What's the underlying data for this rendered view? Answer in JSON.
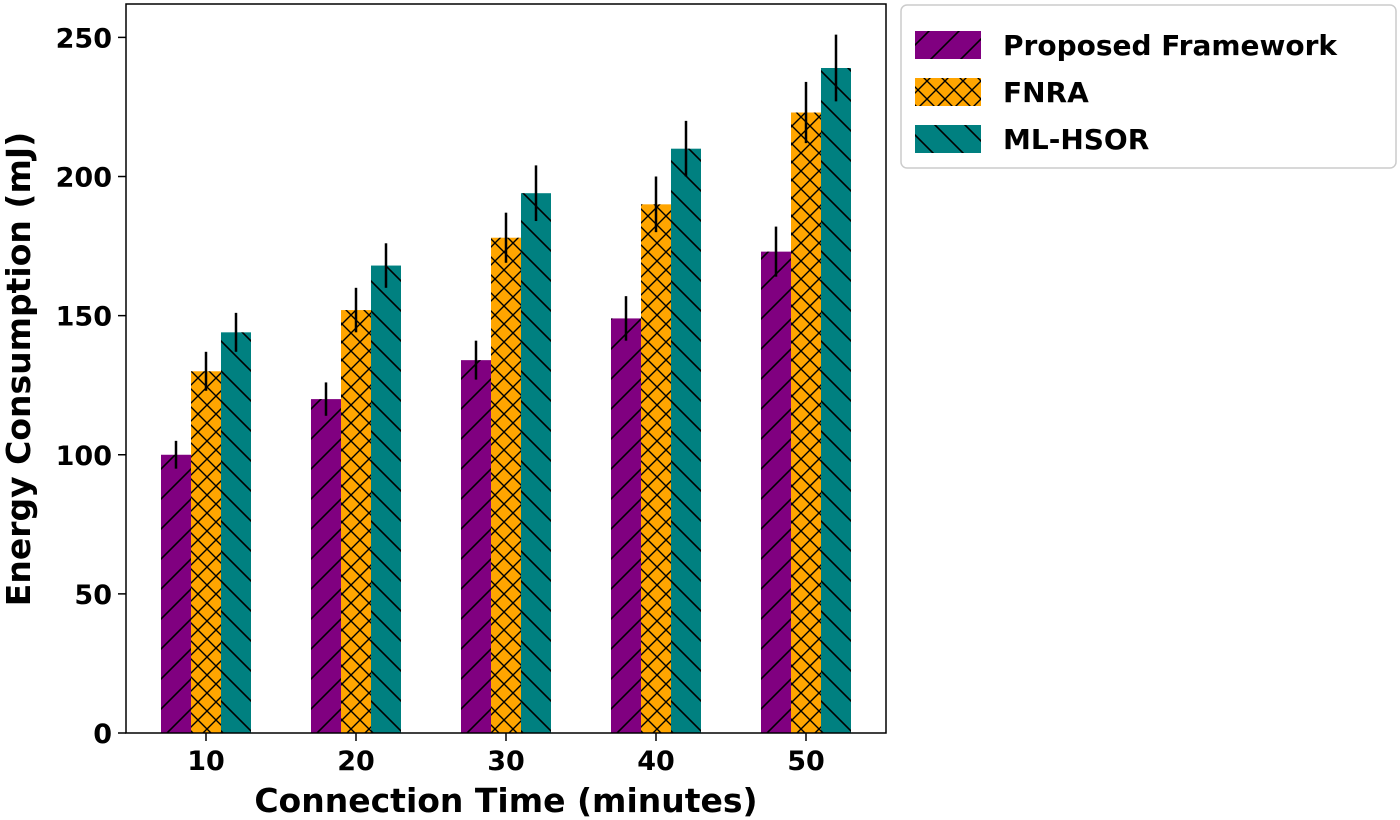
{
  "chart_data": {
    "type": "bar",
    "xlabel": "Connection Time (minutes)",
    "ylabel": "Energy Consumption (mJ)",
    "categories": [
      "10",
      "20",
      "30",
      "40",
      "50"
    ],
    "ylim": [
      0,
      262
    ],
    "yticks": [
      0,
      50,
      100,
      150,
      200,
      250
    ],
    "grid": false,
    "legend_position": "outside-top-right",
    "series": [
      {
        "name": "Proposed Framework",
        "color": "#800080",
        "hatch": "forward-diagonal",
        "values": [
          100,
          120,
          134,
          149,
          173
        ],
        "errors": [
          5,
          6,
          7,
          8,
          9
        ]
      },
      {
        "name": "FNRA",
        "color": "#FFA500",
        "hatch": "crosshatch",
        "values": [
          130,
          152,
          178,
          190,
          223
        ],
        "errors": [
          7,
          8,
          9,
          10,
          11
        ]
      },
      {
        "name": "ML-HSOR",
        "color": "#008080",
        "hatch": "back-diagonal",
        "values": [
          144,
          168,
          194,
          210,
          239
        ],
        "errors": [
          7,
          8,
          10,
          10,
          12
        ]
      }
    ]
  }
}
